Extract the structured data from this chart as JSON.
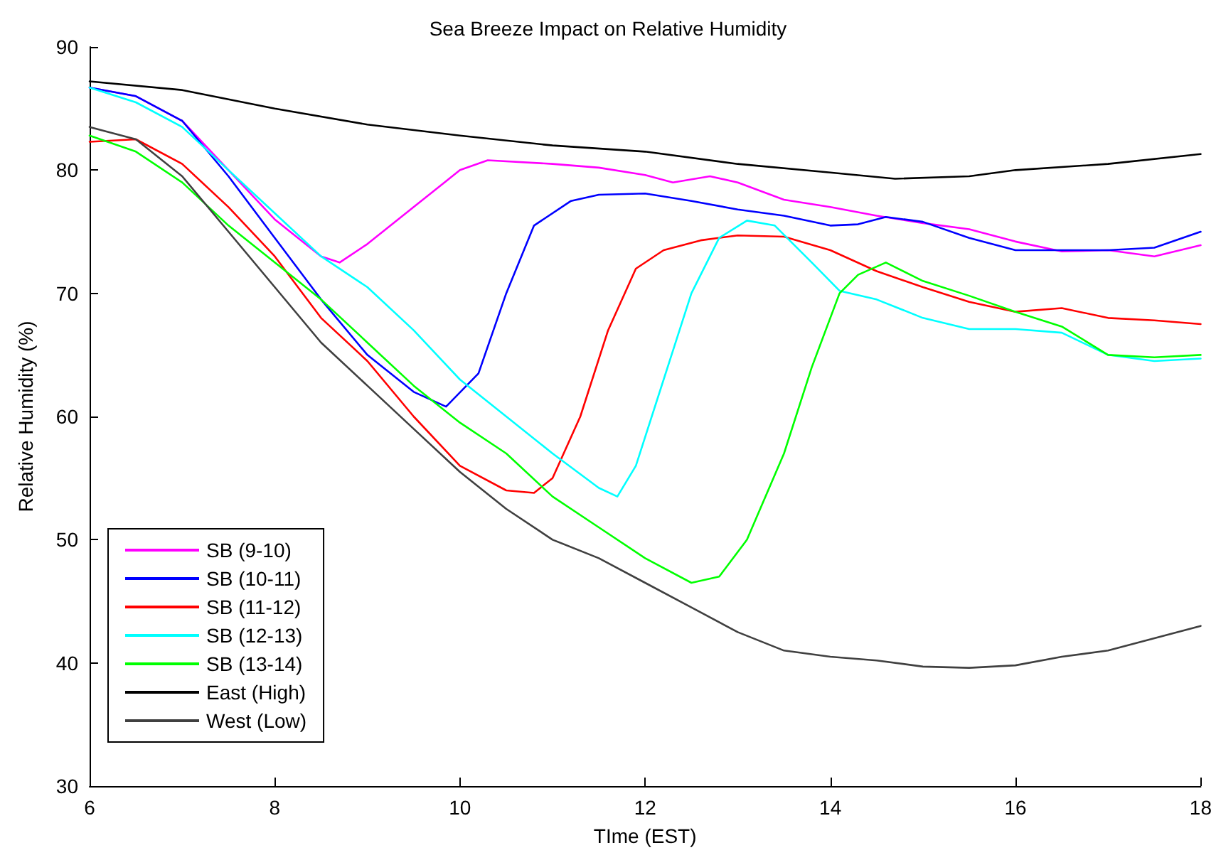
{
  "chart_data": {
    "type": "line",
    "title": "Sea Breeze Impact on Relative Humidity",
    "xlabel": "TIme (EST)",
    "ylabel": "Relative Humidity (%)",
    "xlim": [
      6,
      18
    ],
    "xticks": [
      6,
      8,
      10,
      12,
      14,
      16,
      18
    ],
    "ylim": [
      30,
      90
    ],
    "yticks": [
      30,
      40,
      50,
      60,
      70,
      80,
      90
    ],
    "grid": false,
    "legend": "bottom left",
    "marker": "none",
    "line_style": "solid",
    "series": [
      {
        "name": "SB (9-10)",
        "color": "#ff00ff",
        "x": [
          6,
          6.5,
          7,
          7.5,
          8,
          8.5,
          8.7,
          9,
          9.5,
          10,
          10.3,
          11,
          11.5,
          12,
          12.3,
          12.7,
          13,
          13.5,
          14,
          14.5,
          15,
          15.5,
          16,
          16.5,
          17,
          17.5,
          18
        ],
        "values": [
          86.7,
          86,
          84,
          80,
          76,
          73,
          72.5,
          74,
          77,
          80,
          80.8,
          80.5,
          80.2,
          79.6,
          79,
          79.5,
          79,
          77.6,
          77,
          76.3,
          75.7,
          75.2,
          74.2,
          73.4,
          73.5,
          73,
          73.9
        ]
      },
      {
        "name": "SB (10-11)",
        "color": "#0000ff",
        "x": [
          6,
          6.5,
          7,
          7.5,
          8,
          8.5,
          9,
          9.5,
          9.85,
          10.2,
          10.5,
          10.8,
          11.2,
          11.5,
          12,
          12.5,
          13,
          13.5,
          14,
          14.3,
          14.6,
          15,
          15.5,
          16,
          16.5,
          17,
          17.5,
          18
        ],
        "values": [
          86.7,
          86,
          84,
          79.5,
          74.5,
          69.5,
          65,
          62,
          60.8,
          63.5,
          70,
          75.5,
          77.5,
          78,
          78.1,
          77.5,
          76.8,
          76.3,
          75.5,
          75.6,
          76.2,
          75.8,
          74.5,
          73.5,
          73.5,
          73.5,
          73.7,
          75
        ]
      },
      {
        "name": "SB (11-12)",
        "color": "#ff0000",
        "x": [
          6,
          6.5,
          7,
          7.5,
          8,
          8.5,
          9,
          9.5,
          10,
          10.5,
          10.8,
          11,
          11.3,
          11.6,
          11.9,
          12.2,
          12.6,
          13,
          13.5,
          14,
          14.5,
          15,
          15.5,
          16,
          16.5,
          17,
          17.5,
          18
        ],
        "values": [
          82.3,
          82.5,
          80.5,
          77,
          73,
          68,
          64.5,
          60,
          56,
          54,
          53.8,
          55,
          60,
          67,
          72,
          73.5,
          74.3,
          74.7,
          74.6,
          73.5,
          71.8,
          70.5,
          69.3,
          68.5,
          68.8,
          68,
          67.8,
          67.5
        ]
      },
      {
        "name": "SB (12-13)",
        "color": "#00ffff",
        "x": [
          6,
          6.5,
          7,
          7.5,
          8,
          8.5,
          9,
          9.5,
          10,
          10.5,
          11,
          11.5,
          11.7,
          11.9,
          12.2,
          12.5,
          12.8,
          13.1,
          13.4,
          13.8,
          14.1,
          14.5,
          15,
          15.5,
          16,
          16.5,
          17,
          17.5,
          18
        ],
        "values": [
          86.7,
          85.5,
          83.5,
          80,
          76.5,
          73,
          70.5,
          67,
          63,
          60,
          57,
          54.2,
          53.5,
          56,
          63,
          70,
          74.5,
          75.9,
          75.5,
          72.5,
          70.2,
          69.5,
          68,
          67.1,
          67.1,
          66.8,
          65,
          64.5,
          64.7
        ]
      },
      {
        "name": "SB (13-14)",
        "color": "#00ff00",
        "x": [
          6,
          6.5,
          7,
          7.5,
          8,
          8.5,
          9,
          9.5,
          10,
          10.5,
          11,
          11.5,
          12,
          12.5,
          12.8,
          13.1,
          13.5,
          13.8,
          14.1,
          14.3,
          14.6,
          15,
          15.5,
          16,
          16.5,
          17,
          17.5,
          18
        ],
        "values": [
          82.8,
          81.5,
          79,
          75.5,
          72.5,
          69.5,
          66,
          62.5,
          59.5,
          57,
          53.5,
          51,
          48.5,
          46.5,
          47,
          50,
          57,
          64,
          70,
          71.5,
          72.5,
          71,
          69.8,
          68.5,
          67.3,
          65,
          64.8,
          65
        ]
      },
      {
        "name": "East (High)",
        "color": "#000000",
        "x": [
          6,
          7,
          8,
          9,
          10,
          11,
          12,
          13,
          14,
          14.7,
          15.5,
          16,
          17,
          18
        ],
        "values": [
          87.2,
          86.5,
          85,
          83.7,
          82.8,
          82,
          81.5,
          80.5,
          79.8,
          79.3,
          79.5,
          80,
          80.5,
          81.3
        ]
      },
      {
        "name": "West (Low)",
        "color": "#404040",
        "x": [
          6,
          6.5,
          7,
          7.5,
          8,
          8.5,
          9,
          9.5,
          10,
          10.5,
          11,
          11.5,
          12,
          12.5,
          13,
          13.5,
          14,
          14.5,
          15,
          15.5,
          16,
          16.5,
          17,
          17.5,
          18
        ],
        "values": [
          83.5,
          82.5,
          79.5,
          75,
          70.5,
          66,
          62.5,
          59,
          55.5,
          52.5,
          50,
          48.5,
          46.5,
          44.5,
          42.5,
          41,
          40.5,
          40.2,
          39.7,
          39.6,
          39.8,
          40.5,
          41,
          42,
          43
        ]
      }
    ]
  }
}
